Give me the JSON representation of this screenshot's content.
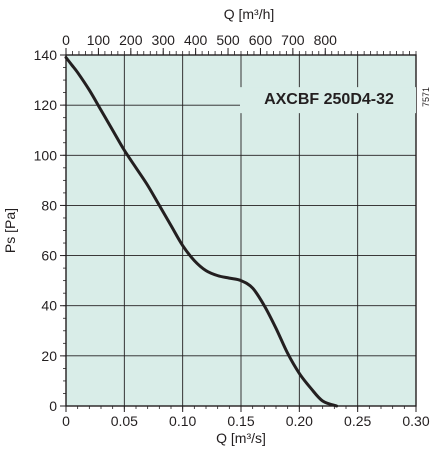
{
  "chart_data": {
    "type": "line",
    "title": "AXCBF 250D4-32",
    "code": "7571",
    "xlabel": "Q [m³/s]",
    "x2label": "Q [m³/h]",
    "ylabel": "Ps [Pa]",
    "xlim": [
      0,
      0.3
    ],
    "ylim": [
      0,
      140
    ],
    "x2lim": [
      0,
      1080
    ],
    "xticks": [
      "0",
      "0.05",
      "0.10",
      "0.15",
      "0.20",
      "0.25",
      "0.30"
    ],
    "yticks": [
      "0",
      "20",
      "40",
      "60",
      "80",
      "100",
      "120",
      "140"
    ],
    "x2ticks": [
      "0",
      "100",
      "200",
      "300",
      "400",
      "500",
      "600",
      "700",
      "800"
    ],
    "grid": true,
    "background_color": "#d9ede8",
    "line_color": "#231f20",
    "series": [
      {
        "x": [
          0.0,
          0.005,
          0.01,
          0.02,
          0.03,
          0.04,
          0.05,
          0.06,
          0.07,
          0.08,
          0.09,
          0.1,
          0.11,
          0.12,
          0.13,
          0.14,
          0.15,
          0.16,
          0.17,
          0.18,
          0.19,
          0.2,
          0.21,
          0.22,
          0.232
        ],
        "y": [
          139,
          136,
          133,
          126,
          118,
          110,
          102,
          95,
          88,
          80,
          72,
          64,
          58,
          54,
          52,
          51,
          50,
          47,
          40,
          31,
          21,
          13,
          7,
          2,
          0
        ]
      }
    ]
  }
}
